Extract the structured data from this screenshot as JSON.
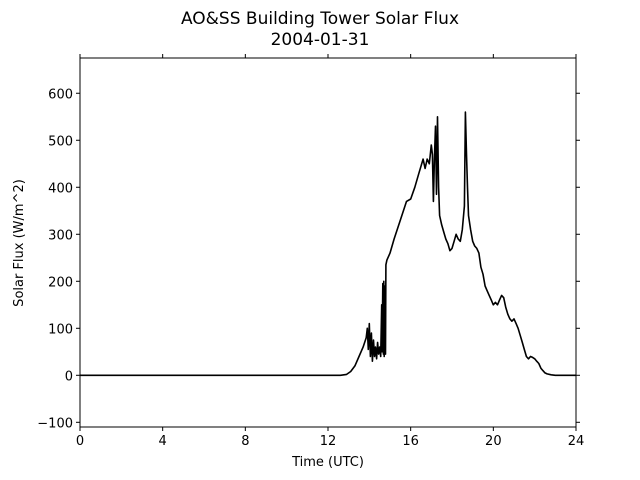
{
  "chart_data": {
    "type": "line",
    "title": "AO&SS Building Tower Solar Flux",
    "subtitle": "2004-01-31",
    "xlabel": "Time (UTC)",
    "ylabel": "Solar Flux (W/m^2)",
    "xlim": [
      0,
      24
    ],
    "ylim": [
      -110,
      675
    ],
    "x_ticks": [
      0,
      4,
      8,
      12,
      16,
      20,
      24
    ],
    "y_ticks": [
      -100,
      0,
      100,
      200,
      300,
      400,
      500,
      600
    ],
    "grid": false,
    "legend": "none",
    "line_color": "#000000",
    "series": [
      {
        "x": [
          0,
          12.6,
          12.9,
          13.1,
          13.3,
          13.5,
          13.7,
          13.85,
          13.9,
          13.95,
          14.0,
          14.05,
          14.1,
          14.15,
          14.2,
          14.25,
          14.3,
          14.35,
          14.4,
          14.45,
          14.5,
          14.55,
          14.6,
          14.62,
          14.65,
          14.68,
          14.7,
          14.72,
          14.75,
          14.78,
          14.8,
          14.85,
          15.0,
          15.2,
          15.5,
          15.8,
          16.0,
          16.2,
          16.4,
          16.6,
          16.7,
          16.8,
          16.9,
          17.0,
          17.05,
          17.1,
          17.15,
          17.2,
          17.25,
          17.3,
          17.35,
          17.4,
          17.5,
          17.6,
          17.7,
          17.8,
          17.9,
          18.0,
          18.1,
          18.2,
          18.3,
          18.4,
          18.5,
          18.6,
          18.65,
          18.7,
          18.75,
          18.8,
          18.9,
          19.0,
          19.1,
          19.2,
          19.3,
          19.4,
          19.5,
          19.6,
          19.7,
          19.8,
          19.9,
          20.0,
          20.1,
          20.2,
          20.3,
          20.4,
          20.5,
          20.6,
          20.7,
          20.8,
          20.9,
          21.0,
          21.1,
          21.2,
          21.3,
          21.4,
          21.5,
          21.6,
          21.7,
          21.8,
          21.9,
          22.0,
          22.1,
          22.2,
          22.3,
          22.4,
          22.5,
          22.6,
          22.8,
          23.0,
          23.2,
          23.5,
          24.0
        ],
        "y": [
          0,
          0,
          2,
          8,
          20,
          40,
          60,
          80,
          100,
          55,
          110,
          40,
          90,
          30,
          75,
          40,
          60,
          35,
          70,
          45,
          60,
          40,
          150,
          50,
          195,
          45,
          200,
          40,
          190,
          45,
          235,
          245,
          260,
          290,
          330,
          370,
          375,
          400,
          430,
          460,
          440,
          460,
          450,
          490,
          470,
          370,
          460,
          530,
          385,
          550,
          400,
          340,
          320,
          305,
          290,
          280,
          265,
          270,
          285,
          300,
          290,
          285,
          310,
          360,
          560,
          470,
          400,
          340,
          310,
          285,
          275,
          270,
          260,
          230,
          215,
          190,
          180,
          170,
          160,
          150,
          155,
          150,
          160,
          170,
          165,
          145,
          130,
          120,
          115,
          120,
          110,
          100,
          85,
          70,
          55,
          40,
          35,
          40,
          38,
          35,
          30,
          25,
          15,
          10,
          5,
          3,
          1,
          0,
          0,
          0,
          0
        ]
      }
    ]
  }
}
